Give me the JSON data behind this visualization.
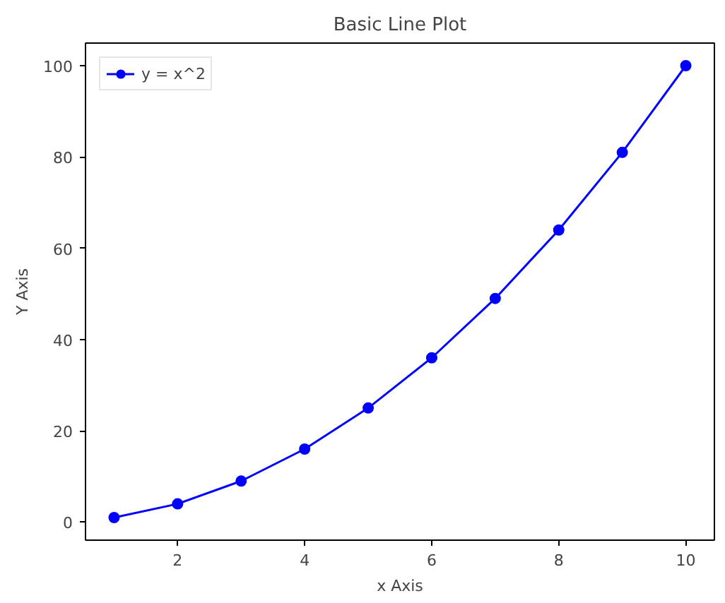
{
  "chart_data": {
    "type": "line",
    "title": "Basic Line Plot",
    "xlabel": "x Axis",
    "ylabel": "Y Axis",
    "x": [
      1,
      2,
      3,
      4,
      5,
      6,
      7,
      8,
      9,
      10
    ],
    "series": [
      {
        "name": "y = x^2",
        "color": "#0000ff",
        "values": [
          1,
          4,
          9,
          16,
          25,
          36,
          49,
          64,
          81,
          100
        ]
      }
    ],
    "xlim": [
      0.55,
      10.45
    ],
    "xticks": [
      2,
      4,
      6,
      8,
      10
    ],
    "ylim": [
      -3.95,
      104.95
    ],
    "yticks": [
      0,
      20,
      40,
      60,
      80,
      100
    ],
    "grid": false,
    "legend": "top left",
    "marker": "circle",
    "line_style": "solid"
  }
}
